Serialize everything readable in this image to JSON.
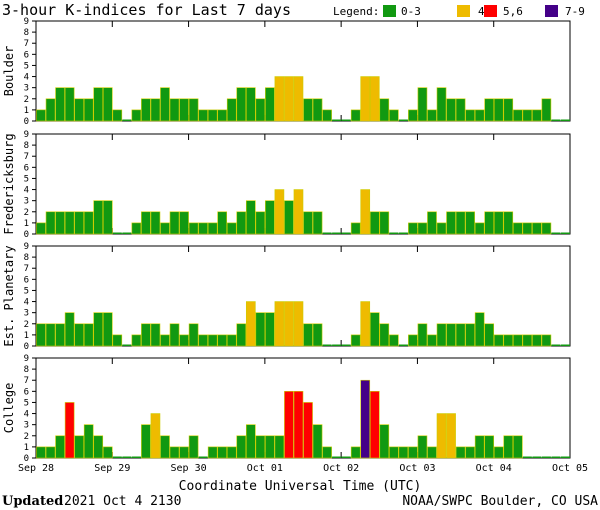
{
  "chart_data": {
    "type": "bar",
    "title": "3-hour K-indices for Last 7 days",
    "legend_title": "Legend:",
    "legend": [
      {
        "label": "0-3",
        "color": "#119911"
      },
      {
        "label": "4",
        "color": "#EEBB00"
      },
      {
        "label": "5,6",
        "color": "#FF0000"
      },
      {
        "label": "7-9",
        "color": "#440088"
      }
    ],
    "colors": {
      "low": "#119911",
      "four": "#EEBB00",
      "storm": "#FF0000",
      "severe": "#440088",
      "bar_edge": "#CCCC00",
      "frame": "#000000"
    },
    "ylim": [
      0,
      9
    ],
    "yticks": [
      "0",
      "1",
      "2",
      "3",
      "4",
      "5",
      "6",
      "7",
      "8",
      "9"
    ],
    "xlabel": "Coordinate Universal Time (UTC)",
    "xticks": [
      "Sep 28",
      "Sep 29",
      "Sep 30",
      "Oct 01",
      "Oct 02",
      "Oct 03",
      "Oct 04",
      "Oct 05"
    ],
    "intervals_per_day": 8,
    "days": 7,
    "series": [
      {
        "name": "Boulder",
        "values": [
          1,
          2,
          3,
          3,
          2,
          2,
          3,
          3,
          1,
          0,
          1,
          2,
          2,
          3,
          2,
          2,
          2,
          1,
          1,
          1,
          2,
          3,
          3,
          2,
          3,
          4,
          4,
          4,
          2,
          2,
          1,
          0,
          0,
          1,
          4,
          4,
          2,
          1,
          0,
          1,
          3,
          1,
          3,
          2,
          2,
          1,
          1,
          2,
          2,
          2,
          1,
          1,
          1,
          2,
          0,
          0
        ]
      },
      {
        "name": "Fredericksburg",
        "values": [
          1,
          2,
          2,
          2,
          2,
          2,
          3,
          3,
          0,
          0,
          1,
          2,
          2,
          1,
          2,
          2,
          1,
          1,
          1,
          2,
          1,
          2,
          3,
          2,
          3,
          4,
          3,
          4,
          2,
          2,
          0,
          0,
          0,
          1,
          4,
          2,
          2,
          0,
          0,
          1,
          1,
          2,
          1,
          2,
          2,
          2,
          1,
          2,
          2,
          2,
          1,
          1,
          1,
          1,
          0,
          0
        ]
      },
      {
        "name": "Est. Planetary",
        "values": [
          2,
          2,
          2,
          3,
          2,
          2,
          3,
          3,
          1,
          0,
          1,
          2,
          2,
          1,
          2,
          1,
          2,
          1,
          1,
          1,
          1,
          2,
          4,
          3,
          3,
          4,
          4,
          4,
          2,
          2,
          0,
          0,
          0,
          1,
          4,
          3,
          2,
          1,
          0,
          1,
          2,
          1,
          2,
          2,
          2,
          2,
          3,
          2,
          1,
          1,
          1,
          1,
          1,
          1,
          0,
          0
        ]
      },
      {
        "name": "College",
        "values": [
          1,
          1,
          2,
          5,
          2,
          3,
          2,
          1,
          0,
          0,
          0,
          3,
          4,
          2,
          1,
          1,
          2,
          0,
          1,
          1,
          1,
          2,
          3,
          2,
          2,
          2,
          6,
          6,
          5,
          3,
          1,
          0,
          0,
          1,
          7,
          6,
          3,
          1,
          1,
          1,
          2,
          1,
          4,
          4,
          1,
          1,
          2,
          2,
          1,
          2,
          2,
          0,
          0,
          0,
          0,
          0
        ]
      }
    ]
  },
  "footer": {
    "updated_label": "Updated",
    "updated_value": "2021 Oct  4 2130",
    "credit": "NOAA/SWPC Boulder, CO USA"
  }
}
